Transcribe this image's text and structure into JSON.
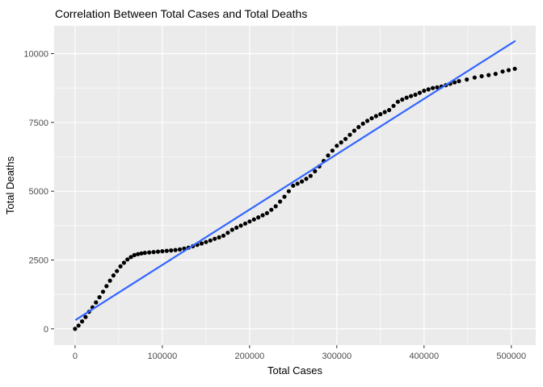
{
  "chart_data": {
    "type": "scatter",
    "title": "Correlation Between Total Cases and Total Deaths",
    "xlabel": "Total Cases",
    "ylabel": "Total Deaths",
    "x_ticks": [
      0,
      100000,
      200000,
      300000,
      400000,
      500000
    ],
    "x_minor_ticks": [
      50000,
      150000,
      250000,
      350000,
      450000
    ],
    "y_ticks": [
      0,
      2500,
      5000,
      7500,
      10000
    ],
    "y_minor_ticks": [
      1250,
      3750,
      6250,
      8750
    ],
    "xlim": [
      -24000,
      528000
    ],
    "ylim": [
      -590,
      11010
    ],
    "grid": "major+minor white on gray panel",
    "legend_position": "none",
    "colors": {
      "panel_bg": "#EBEBEB",
      "grid": "#FFFFFF",
      "points": "#000000",
      "fit_line": "#3366FF",
      "tick_text": "#4D4D4D",
      "axis_text": "#000000"
    },
    "series": [
      {
        "name": "observations",
        "type": "scatter",
        "points": [
          [
            0,
            0
          ],
          [
            4000,
            120
          ],
          [
            8000,
            270
          ],
          [
            12000,
            430
          ],
          [
            16000,
            620
          ],
          [
            20000,
            780
          ],
          [
            24000,
            960
          ],
          [
            28000,
            1150
          ],
          [
            32000,
            1350
          ],
          [
            36000,
            1550
          ],
          [
            40000,
            1750
          ],
          [
            44000,
            1940
          ],
          [
            48000,
            2100
          ],
          [
            52000,
            2270
          ],
          [
            56000,
            2400
          ],
          [
            60000,
            2520
          ],
          [
            64000,
            2610
          ],
          [
            68000,
            2680
          ],
          [
            72000,
            2715
          ],
          [
            76000,
            2740
          ],
          [
            80000,
            2760
          ],
          [
            85000,
            2775
          ],
          [
            90000,
            2790
          ],
          [
            95000,
            2805
          ],
          [
            100000,
            2820
          ],
          [
            105000,
            2835
          ],
          [
            110000,
            2850
          ],
          [
            115000,
            2865
          ],
          [
            120000,
            2885
          ],
          [
            125000,
            2915
          ],
          [
            130000,
            2950
          ],
          [
            135000,
            3000
          ],
          [
            140000,
            3050
          ],
          [
            145000,
            3100
          ],
          [
            150000,
            3155
          ],
          [
            155000,
            3210
          ],
          [
            160000,
            3270
          ],
          [
            165000,
            3325
          ],
          [
            170000,
            3385
          ],
          [
            175000,
            3490
          ],
          [
            180000,
            3600
          ],
          [
            185000,
            3675
          ],
          [
            190000,
            3750
          ],
          [
            195000,
            3825
          ],
          [
            200000,
            3900
          ],
          [
            205000,
            3975
          ],
          [
            210000,
            4050
          ],
          [
            215000,
            4125
          ],
          [
            220000,
            4205
          ],
          [
            225000,
            4325
          ],
          [
            230000,
            4450
          ],
          [
            235000,
            4625
          ],
          [
            240000,
            4800
          ],
          [
            245000,
            5000
          ],
          [
            250000,
            5200
          ],
          [
            255000,
            5275
          ],
          [
            260000,
            5355
          ],
          [
            265000,
            5450
          ],
          [
            270000,
            5555
          ],
          [
            275000,
            5725
          ],
          [
            280000,
            5900
          ],
          [
            285000,
            6100
          ],
          [
            290000,
            6300
          ],
          [
            295000,
            6475
          ],
          [
            300000,
            6650
          ],
          [
            305000,
            6775
          ],
          [
            310000,
            6900
          ],
          [
            315000,
            7050
          ],
          [
            320000,
            7200
          ],
          [
            325000,
            7330
          ],
          [
            330000,
            7455
          ],
          [
            335000,
            7555
          ],
          [
            340000,
            7650
          ],
          [
            345000,
            7730
          ],
          [
            350000,
            7800
          ],
          [
            355000,
            7875
          ],
          [
            360000,
            7950
          ],
          [
            365000,
            8100
          ],
          [
            370000,
            8250
          ],
          [
            375000,
            8330
          ],
          [
            380000,
            8400
          ],
          [
            385000,
            8455
          ],
          [
            390000,
            8505
          ],
          [
            395000,
            8575
          ],
          [
            400000,
            8650
          ],
          [
            405000,
            8700
          ],
          [
            410000,
            8750
          ],
          [
            415000,
            8775
          ],
          [
            420000,
            8805
          ],
          [
            425000,
            8855
          ],
          [
            430000,
            8905
          ],
          [
            435000,
            8955
          ],
          [
            440000,
            9000
          ],
          [
            449000,
            9060
          ],
          [
            458000,
            9130
          ],
          [
            466000,
            9180
          ],
          [
            474000,
            9220
          ],
          [
            482000,
            9265
          ],
          [
            490000,
            9350
          ],
          [
            497000,
            9400
          ],
          [
            504000,
            9450
          ]
        ]
      },
      {
        "name": "linear-fit",
        "type": "line",
        "points": [
          [
            1000,
            330
          ],
          [
            504000,
            10450
          ]
        ]
      }
    ]
  }
}
